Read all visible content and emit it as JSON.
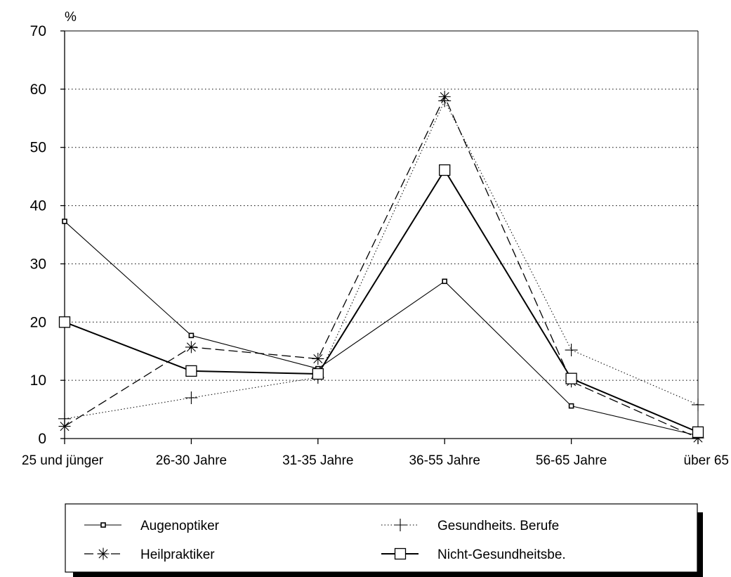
{
  "chart_data": {
    "type": "line",
    "ylabel": "%",
    "ylim": [
      0,
      70
    ],
    "yticks": [
      0,
      10,
      20,
      30,
      40,
      50,
      60,
      70
    ],
    "grid": "horizontal dotted",
    "legend_placement": "bottom",
    "categories": [
      "25 und jünger",
      "26-30 Jahre",
      "31-35 Jahre",
      "36-55 Jahre",
      "56-65 Jahre",
      "über 65"
    ],
    "series": [
      {
        "name": "Augenoptiker",
        "values": [
          37.3,
          17.7,
          12.0,
          27.0,
          5.6,
          0.5
        ],
        "line": "solid-thin",
        "marker": "small-square"
      },
      {
        "name": "Gesundheits. Berufe",
        "values": [
          3.4,
          7.0,
          10.5,
          58.0,
          15.2,
          5.8
        ],
        "line": "dotted",
        "marker": "plus"
      },
      {
        "name": "Heilpraktiker",
        "values": [
          2.1,
          15.7,
          13.7,
          58.7,
          9.8,
          0.1
        ],
        "line": "dashed",
        "marker": "asterisk"
      },
      {
        "name": "Nicht-Gesundheitsbe.",
        "values": [
          20.0,
          11.6,
          11.1,
          46.1,
          10.3,
          1.1
        ],
        "line": "solid-thick",
        "marker": "open-square"
      }
    ]
  }
}
